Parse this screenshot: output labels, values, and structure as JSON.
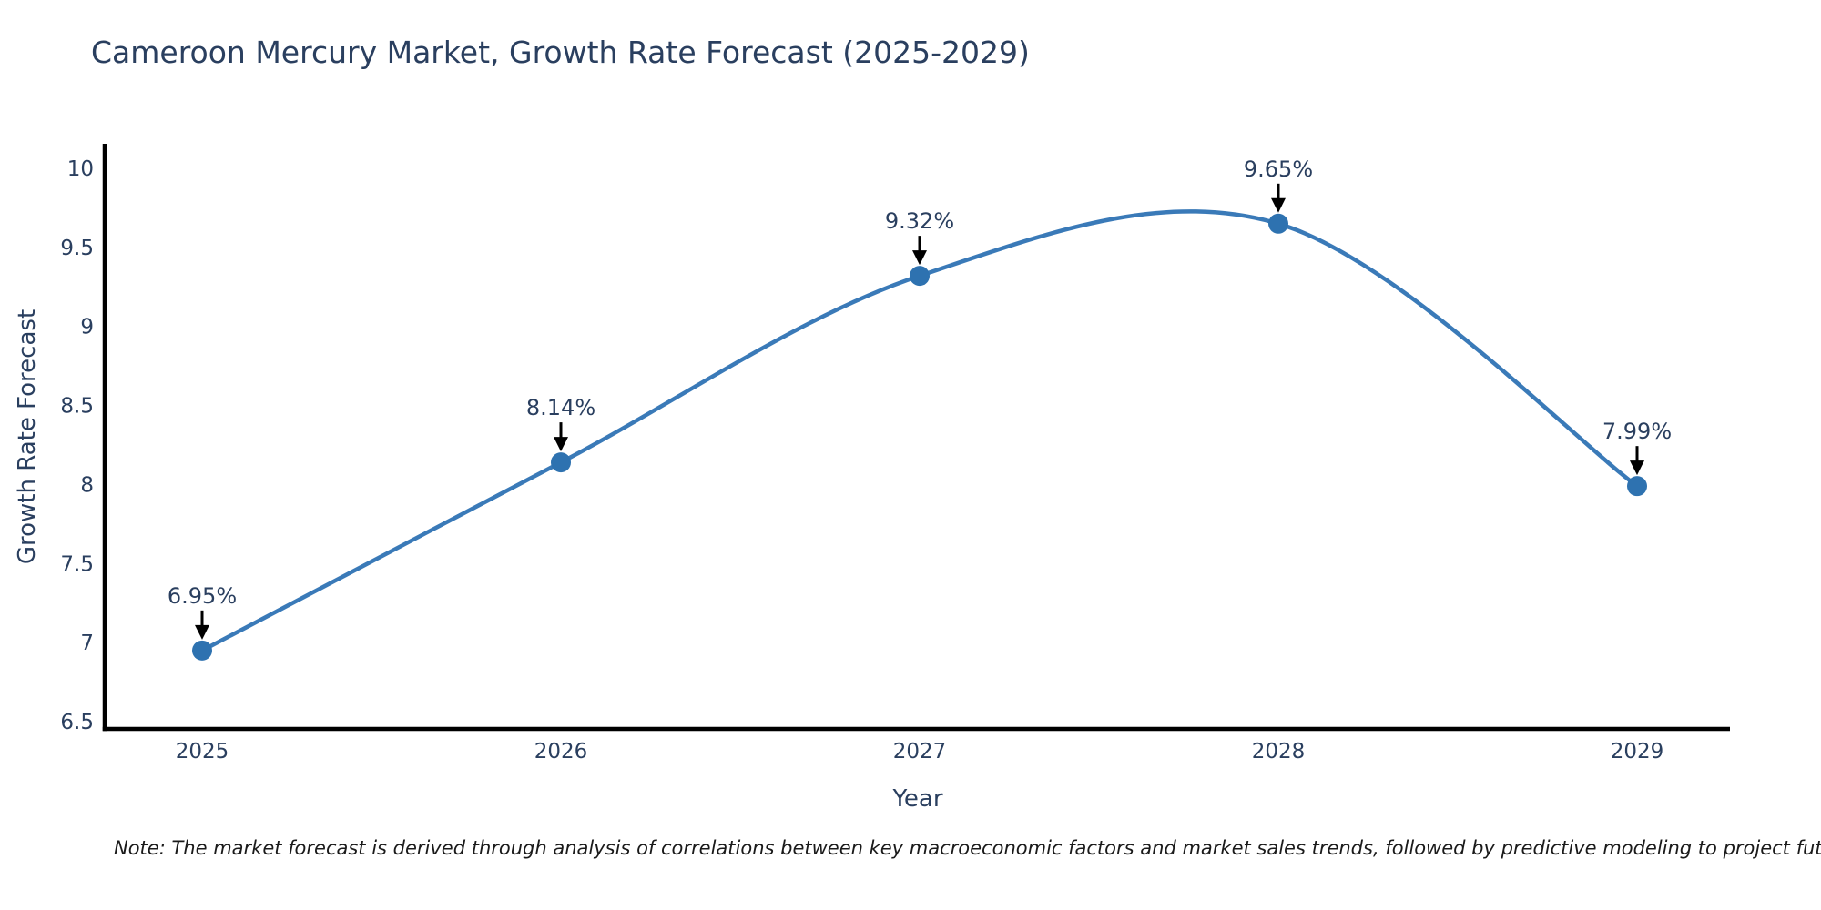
{
  "title": "Cameroon Mercury Market, Growth Rate Forecast (2025-2029)",
  "footnote": "Note: The market forecast is derived through analysis of correlations between key macroeconomic factors and market sales trends, followed by predictive modeling to project future sales",
  "chart_data": {
    "type": "line",
    "title": "Cameroon Mercury Market, Growth Rate Forecast (2025-2029)",
    "xlabel": "Year",
    "ylabel": "Growth Rate Forecast",
    "categories": [
      "2025",
      "2026",
      "2027",
      "2028",
      "2029"
    ],
    "values": [
      6.95,
      8.14,
      9.32,
      9.65,
      7.99
    ],
    "point_labels": [
      "6.95%",
      "8.14%",
      "9.32%",
      "9.65%",
      "7.99%"
    ],
    "y_ticks": [
      "6.5",
      "7",
      "7.5",
      "8",
      "8.5",
      "9",
      "9.5",
      "10"
    ],
    "ylim": [
      6.5,
      10.15
    ],
    "line_shape": "spline",
    "grid": false,
    "legend_position": "none",
    "marker_style": "circle",
    "annotation_arrows": true,
    "colors": {
      "line": "#3A7AB8",
      "marker": "#2E72B0",
      "axis": "#000000",
      "text": "#2a3f5f",
      "arrow": "#000000"
    }
  }
}
